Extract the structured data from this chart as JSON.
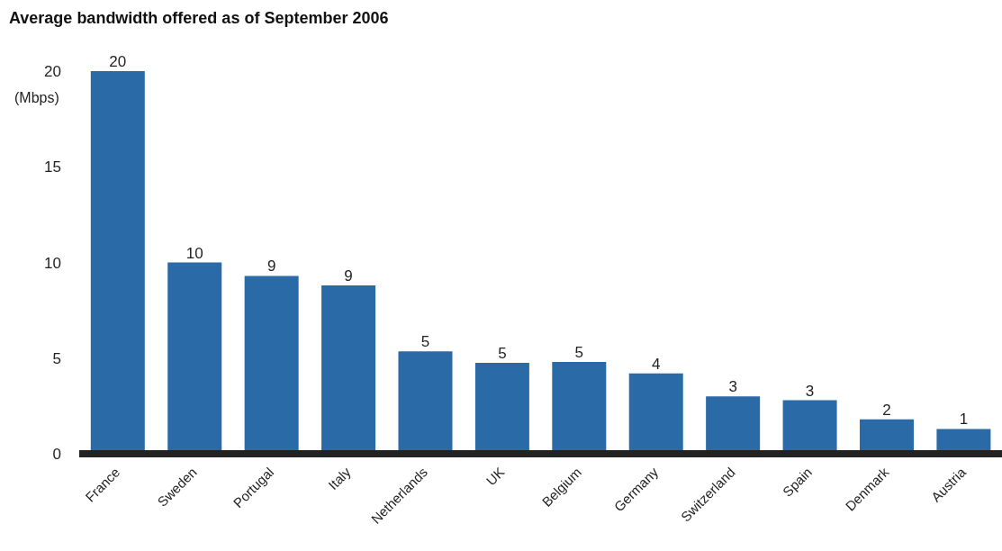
{
  "chart_data": {
    "type": "bar",
    "title": "Average bandwidth offered as of September 2006",
    "ylabel": "(Mbps)",
    "categories": [
      "France",
      "Sweden",
      "Portugal",
      "Italy",
      "Netherlands",
      "UK",
      "Belgium",
      "Germany",
      "Switzerland",
      "Spain",
      "Denmark",
      "Austria"
    ],
    "values": [
      20,
      10,
      9.3,
      8.8,
      5.35,
      4.75,
      4.8,
      4.2,
      3.0,
      2.8,
      1.8,
      1.3
    ],
    "value_labels": [
      "20",
      "10",
      "9",
      "9",
      "5",
      "5",
      "5",
      "4",
      "3",
      "3",
      "2",
      "1"
    ],
    "color": "#2a6aa6",
    "ylim": [
      0,
      20
    ],
    "yticks": [
      0,
      5,
      10,
      15,
      20
    ],
    "grid": false
  }
}
